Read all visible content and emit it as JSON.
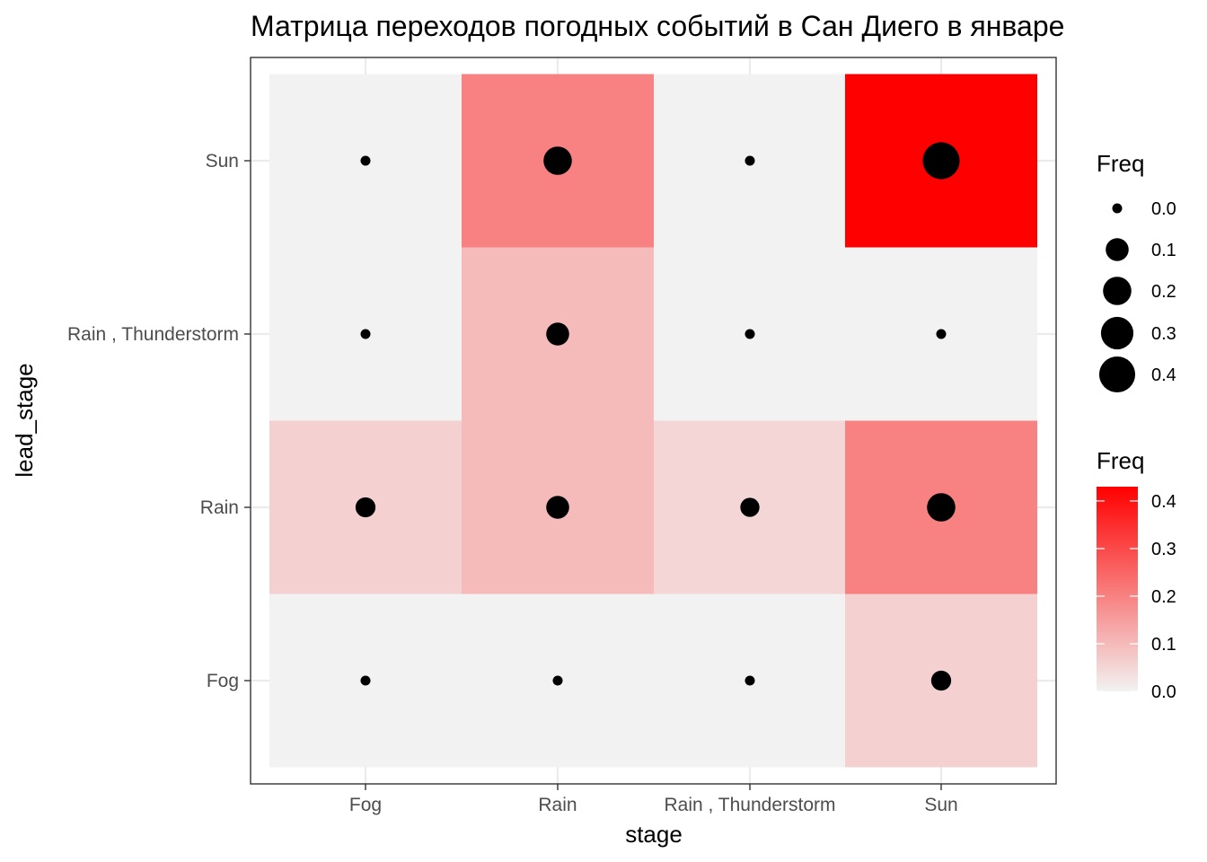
{
  "chart_data": {
    "type": "heatmap",
    "title": "Матрица переходов погодных событий в Сан Диего в январе",
    "xlabel": "stage",
    "ylabel": "lead_stage",
    "x_categories": [
      "Fog",
      "Rain",
      "Rain , Thunderstorm",
      "Sun"
    ],
    "y_categories": [
      "Fog",
      "Rain",
      "Rain , Thunderstorm",
      "Sun"
    ],
    "cells": [
      {
        "x": "Fog",
        "y": "Fog",
        "freq": 0.0
      },
      {
        "x": "Rain",
        "y": "Fog",
        "freq": 0.0
      },
      {
        "x": "Rain , Thunderstorm",
        "y": "Fog",
        "freq": 0.0
      },
      {
        "x": "Sun",
        "y": "Fog",
        "freq": 0.06
      },
      {
        "x": "Fog",
        "y": "Rain",
        "freq": 0.06
      },
      {
        "x": "Rain",
        "y": "Rain",
        "freq": 0.1
      },
      {
        "x": "Rain , Thunderstorm",
        "y": "Rain",
        "freq": 0.05
      },
      {
        "x": "Sun",
        "y": "Rain",
        "freq": 0.2
      },
      {
        "x": "Fog",
        "y": "Rain , Thunderstorm",
        "freq": 0.0
      },
      {
        "x": "Rain",
        "y": "Rain , Thunderstorm",
        "freq": 0.1
      },
      {
        "x": "Rain , Thunderstorm",
        "y": "Rain , Thunderstorm",
        "freq": 0.0
      },
      {
        "x": "Sun",
        "y": "Rain , Thunderstorm",
        "freq": 0.0
      },
      {
        "x": "Fog",
        "y": "Sun",
        "freq": 0.0
      },
      {
        "x": "Rain",
        "y": "Sun",
        "freq": 0.2
      },
      {
        "x": "Rain , Thunderstorm",
        "y": "Sun",
        "freq": 0.0
      },
      {
        "x": "Sun",
        "y": "Sun",
        "freq": 0.43
      }
    ],
    "fill_scale": {
      "low": "#f2f2f2",
      "high": "#ff0000",
      "limits": [
        0,
        0.43
      ]
    },
    "legend_size": {
      "title": "Freq",
      "breaks": [
        "0.0",
        "0.1",
        "0.2",
        "0.3",
        "0.4"
      ]
    },
    "legend_fill": {
      "title": "Freq",
      "breaks": [
        "0.0",
        "0.1",
        "0.2",
        "0.3",
        "0.4"
      ]
    },
    "legend_placement": "right",
    "grid": true
  }
}
